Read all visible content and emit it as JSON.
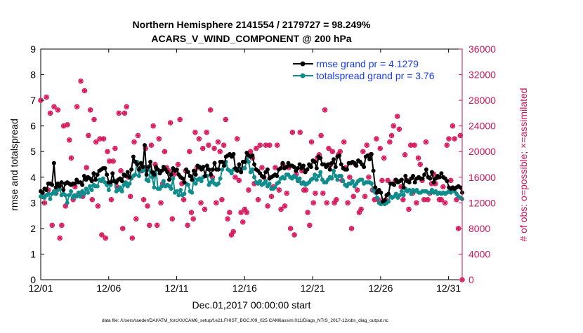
{
  "chart_data": {
    "type": "line",
    "title_line1": "Northern Hemisphere 2141554 / 2179727 = 98.249%",
    "title_line2": "ACARS_V_WIND_COMPONENT @ 200 hPa",
    "xlabel": "Dec.01,2017 00:00:00 start",
    "ylabel_left": "rmse and totalspread",
    "ylabel_right": "# of obs: o=possible; ×=assimilated",
    "footer": "data file: /Users/raeder/DAI/ATM_forcXX/CAM6_setup/f.e21.FHIST_BGC.f09_025.CAM6assim.011/Diags_NTrS_2017-12/obs_diag_output.nc",
    "xlim": [
      0,
      31
    ],
    "ylim_left": [
      0,
      9
    ],
    "ylim_right": [
      0,
      36000
    ],
    "x_ticks": [
      0,
      5,
      10,
      15,
      20,
      25,
      30
    ],
    "x_tick_labels": [
      "12/01",
      "12/06",
      "12/11",
      "12/16",
      "12/21",
      "12/26",
      "12/31"
    ],
    "y_left_ticks": [
      "0",
      "1",
      "2",
      "3",
      "4",
      "5",
      "6",
      "7",
      "8",
      "9"
    ],
    "y_right_ticks": [
      "0",
      "4000",
      "8000",
      "12000",
      "16000",
      "20000",
      "24000",
      "28000",
      "32000",
      "36000"
    ],
    "legend": [
      {
        "label": "rmse grand pr = 4.1279",
        "color": "#000000"
      },
      {
        "label": "totalspread grand pr = 3.76",
        "color": "#0f8080"
      }
    ],
    "colors": {
      "rmse": "#000000",
      "spread": "#108c8c",
      "obs": "#d6145a",
      "legend_text": "#1a3cf0",
      "axis_right": "#c8175a"
    },
    "rmse_values": [
      3.45,
      3.4,
      3.55,
      3.5,
      3.75,
      3.75,
      3.7,
      4.55,
      3.6,
      3.75,
      3.65,
      3.8,
      3.5,
      3.75,
      3.8,
      3.75,
      3.7,
      3.75,
      3.75,
      3.9,
      3.8,
      3.8,
      3.7,
      4.05,
      3.9,
      4.0,
      3.95,
      3.85,
      4.15,
      3.9,
      4.1,
      4.25,
      4.3,
      4.35,
      4.35,
      4.1,
      3.8,
      3.8,
      4.15,
      3.85,
      3.8,
      3.9,
      3.95,
      3.85,
      4.1,
      4.05,
      4.2,
      4.0,
      4.3,
      4.8,
      4.6,
      4.5,
      4.3,
      4.55,
      4.4,
      5.25,
      4.1,
      4.4,
      4.6,
      4.2,
      4.1,
      4.4,
      4.3,
      4.15,
      4.25,
      4.4,
      4.3,
      4.2,
      3.9,
      4.1,
      4.35,
      4.25,
      4.3,
      4.1,
      4.0,
      3.95,
      3.8,
      4.3,
      4.2,
      4.05,
      3.9,
      4.25,
      4.1,
      4.45,
      4.4,
      4.3,
      4.4,
      4.05,
      4.45,
      4.3,
      4.1,
      4.3,
      4.55,
      4.3,
      4.3,
      4.6,
      4.6,
      4.45,
      4.8,
      4.85,
      4.9,
      4.8,
      4.9,
      4.35,
      4.25,
      4.5,
      4.2,
      4.6,
      4.6,
      4.95,
      4.85,
      4.8,
      4.85,
      4.5,
      4.3,
      4.25,
      4.15,
      4.05,
      4.0,
      4.2,
      4.3,
      3.95,
      4.0,
      4.05,
      4.1,
      4.05,
      4.3,
      4.35,
      4.55,
      4.35,
      4.4,
      4.55,
      4.45,
      4.45,
      4.4,
      4.25,
      4.35,
      4.5,
      4.35,
      4.45,
      4.2,
      4.3,
      4.5,
      4.4,
      4.65,
      4.6,
      4.35,
      4.8,
      4.75,
      4.5,
      4.5,
      4.4,
      4.5,
      4.3,
      4.55,
      4.7,
      4.4,
      4.8,
      4.85,
      4.5,
      4.35,
      4.3,
      4.3,
      4.55,
      4.55,
      4.6,
      4.55,
      4.45,
      4.65,
      4.6,
      4.5,
      4.4,
      4.8,
      4.85,
      4.7,
      4.9,
      4.25,
      3.6,
      3.4,
      3.5,
      3.4,
      3.05,
      3.1,
      3.3,
      3.35,
      3.75,
      3.75,
      3.7,
      3.9,
      3.8,
      3.85,
      3.9,
      3.6,
      4.05,
      3.85,
      3.8,
      3.95,
      4.05,
      3.8,
      3.95,
      4.0,
      3.95,
      3.95,
      4.1,
      4.3,
      4.0,
      3.95,
      4.2,
      3.8,
      3.95,
      4.05,
      4.0,
      4.15,
      4.0,
      3.95,
      3.85,
      3.6,
      3.55,
      3.6,
      3.55,
      3.6,
      3.65,
      3.6,
      3.4
    ],
    "spread_values": [
      3.25,
      3.25,
      3.2,
      3.3,
      3.35,
      3.15,
      3.35,
      3.45,
      3.35,
      3.5,
      3.55,
      3.3,
      3.35,
      3.3,
      3.0,
      3.3,
      3.45,
      3.2,
      3.3,
      3.25,
      3.4,
      3.25,
      3.45,
      3.35,
      3.55,
      3.4,
      3.65,
      3.5,
      3.7,
      3.65,
      3.65,
      3.9,
      3.85,
      3.95,
      3.8,
      3.7,
      3.5,
      3.7,
      3.85,
      3.85,
      3.45,
      3.5,
      3.6,
      3.45,
      3.7,
      3.8,
      3.65,
      3.75,
      3.95,
      4.05,
      4.1,
      4.6,
      4.05,
      4.3,
      4.25,
      4.4,
      3.9,
      3.85,
      4.25,
      4.0,
      3.6,
      4.35,
      3.55,
      3.55,
      3.65,
      3.85,
      3.65,
      3.7,
      3.65,
      3.55,
      3.95,
      3.4,
      3.45,
      3.3,
      3.5,
      3.3,
      3.35,
      3.75,
      3.7,
      3.45,
      3.4,
      3.95,
      3.75,
      3.9,
      3.95,
      3.85,
      4.0,
      4.05,
      4.05,
      3.7,
      3.8,
      3.9,
      3.75,
      3.7,
      3.75,
      3.95,
      4.3,
      4.45,
      4.6,
      4.3,
      4.25,
      4.15,
      4.3,
      4.3,
      4.3,
      4.35,
      4.25,
      4.35,
      4.35,
      4.7,
      4.6,
      4.2,
      4.3,
      4.0,
      3.8,
      3.75,
      3.85,
      3.7,
      3.75,
      3.85,
      3.65,
      3.75,
      3.55,
      3.55,
      3.6,
      3.75,
      3.8,
      3.95,
      4.0,
      3.95,
      4.1,
      4.1,
      4.0,
      3.95,
      4.05,
      4.0,
      3.85,
      3.95,
      3.75,
      3.8,
      3.7,
      3.75,
      3.8,
      3.9,
      3.95,
      4.1,
      3.9,
      4.05,
      4.2,
      3.9,
      3.8,
      3.8,
      3.9,
      4.0,
      3.95,
      4.25,
      4.05,
      3.9,
      4.05,
      4.05,
      3.85,
      3.7,
      3.65,
      3.75,
      3.75,
      3.85,
      3.65,
      3.75,
      3.85,
      3.9,
      3.9,
      3.75,
      3.8,
      3.8,
      3.8,
      3.75,
      3.5,
      3.4,
      3.2,
      3.0,
      2.95,
      3.0,
      2.95,
      3.0,
      3.05,
      3.25,
      3.2,
      3.25,
      3.35,
      3.2,
      3.3,
      3.45,
      3.3,
      3.55,
      3.45,
      3.5,
      3.35,
      3.5,
      3.45,
      3.5,
      3.4,
      3.4,
      3.45,
      3.45,
      3.45,
      3.4,
      3.4,
      3.5,
      3.4,
      3.45,
      3.35,
      3.4,
      3.35,
      3.4,
      3.35,
      3.4,
      3.45,
      3.4,
      3.5,
      3.45,
      3.35,
      3.25,
      3.2,
      3.15
    ],
    "obs_values": [
      28000,
      13000,
      12000,
      28500,
      14000,
      26000,
      8500,
      27000,
      13500,
      26500,
      6500,
      8500,
      24000,
      11500,
      24200,
      21800,
      19000,
      12500,
      14500,
      27000,
      13500,
      31000,
      13000,
      29500,
      17500,
      22500,
      26500,
      12500,
      25000,
      21500,
      11500,
      22000,
      7000,
      22000,
      6500,
      20000,
      18500,
      12500,
      18500,
      20500,
      14500,
      26000,
      17000,
      8000,
      26000,
      27000,
      16000,
      13000,
      6500,
      21500,
      9500,
      22500,
      17000,
      17000,
      12500,
      20500,
      11500,
      8500,
      21000,
      24000,
      18000,
      8500,
      22000,
      12000,
      15000,
      20000,
      17500,
      17000,
      24500,
      9500,
      16500,
      17000,
      18000,
      25000,
      15000,
      12500,
      17000,
      8500,
      20000,
      10500,
      9500,
      23000,
      17500,
      22000,
      12000,
      20500,
      11000,
      23000,
      21000,
      26500,
      16000,
      20500,
      12000,
      21500,
      20000,
      12500,
      21000,
      25000,
      9500,
      10500,
      7000,
      7500,
      16000,
      22000,
      15500,
      10500,
      9000,
      11000,
      10500,
      14000,
      20000,
      19000,
      15000,
      20500,
      12500,
      21000,
      17500,
      16000,
      21000,
      11500,
      21000,
      13000,
      14500,
      17500,
      21000,
      14000,
      11000,
      18000,
      11500,
      13500,
      17500,
      8000,
      23000,
      7000,
      16500,
      15500,
      23000,
      17000,
      14000,
      14000,
      10500,
      8500,
      21500,
      12000,
      13500,
      19000,
      19500,
      22500,
      13500,
      26500,
      12000,
      20500,
      18000,
      20000,
      12000,
      12500,
      19500,
      20000,
      15500,
      21500,
      17500,
      12000,
      16000,
      8000,
      13000,
      18000,
      14000,
      10500,
      11000,
      20000,
      13000,
      21000,
      16000,
      19500,
      14000,
      12500,
      22000,
      12500,
      20500,
      15500,
      19000,
      12500,
      15500,
      21500,
      22500,
      24000,
      15500,
      25500,
      23500,
      14500,
      12500,
      19500,
      15500,
      11000,
      21000,
      13500,
      21000,
      12000,
      19000,
      18000,
      15500,
      12500,
      21500,
      12500,
      13500,
      15000,
      16500,
      15000,
      16000,
      12500,
      12500,
      14500,
      12000,
      21000,
      22000,
      15500,
      24000,
      22000,
      12500,
      8000,
      22500,
      0
    ]
  }
}
